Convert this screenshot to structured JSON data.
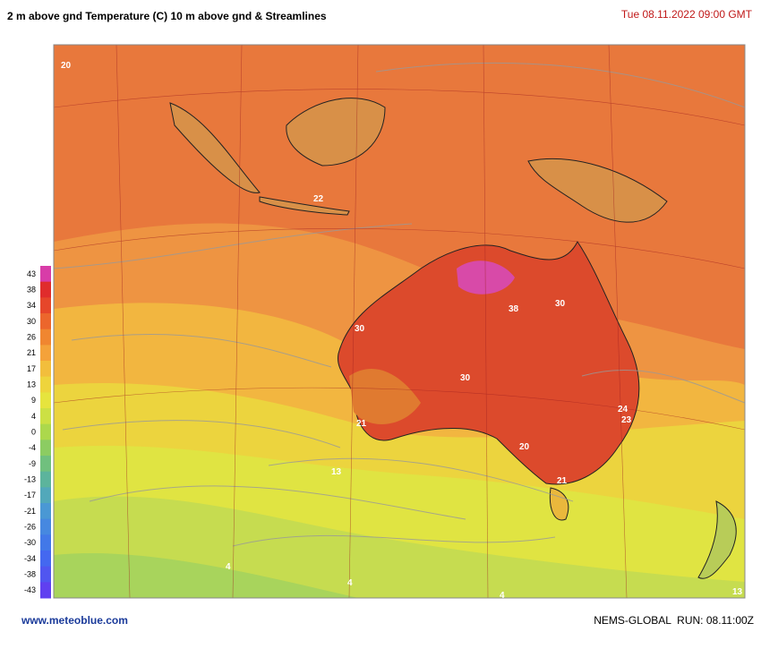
{
  "header": {
    "title": "2 m above gnd Temperature (C) 10 m above gnd & Streamlines",
    "datetime": "Tue 08.11.2022  09:00 GMT"
  },
  "legend": {
    "ticks": [
      43,
      38,
      34,
      30,
      26,
      21,
      17,
      13,
      9,
      4,
      0,
      -4,
      -9,
      -13,
      -17,
      -21,
      -26,
      -30,
      -34,
      -38,
      -43
    ],
    "colors": [
      "#d83ca8",
      "#e02c2c",
      "#e6462a",
      "#ec662c",
      "#f08630",
      "#f4a23a",
      "#f2be3c",
      "#eed43c",
      "#e6e43e",
      "#cce044",
      "#acd84c",
      "#8ccc62",
      "#70c07e",
      "#5cb49c",
      "#52a8ba",
      "#4a98d4",
      "#4688e0",
      "#4278e8",
      "#4468f0",
      "#5056f0",
      "#6040f0"
    ]
  },
  "map_labels": [
    "20",
    "38",
    "30",
    "30",
    "30",
    "22",
    "21",
    "24",
    "23",
    "20",
    "21",
    "13",
    "4",
    "4",
    "4",
    "13"
  ],
  "footer": {
    "source": "www.meteoblue.com",
    "run": "NEMS-GLOBAL  RUN: 08.11:00Z"
  }
}
